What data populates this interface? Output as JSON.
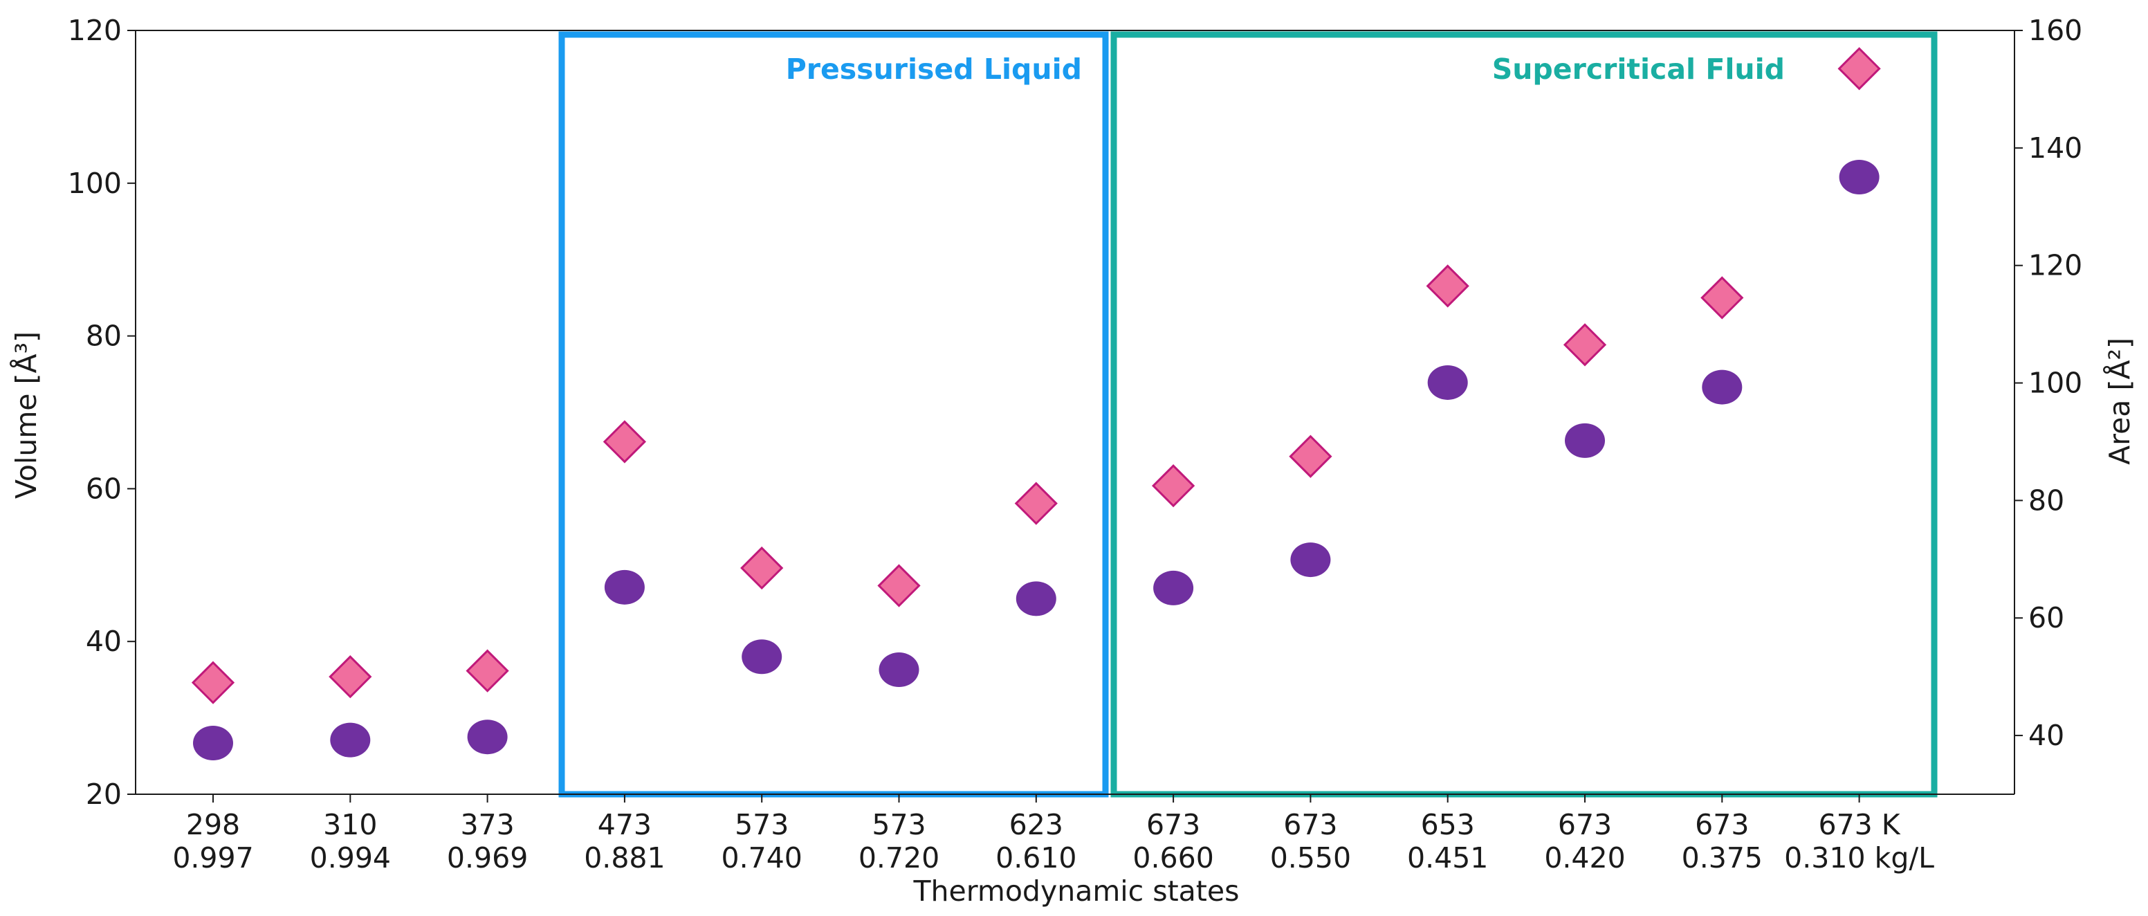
{
  "colors": {
    "volume_marker": "#7030a0",
    "area_marker_fill": "#f06e9e",
    "area_marker_edge": "#c0197a",
    "liquid_box": "#1a9bf0",
    "fluid_box": "#1aaea2",
    "axis": "#1a1a1a"
  },
  "chart_data": {
    "type": "scatter",
    "xlabel": "Thermodynamic states",
    "ylabel_left": "Volume [Å³]",
    "ylabel_right": "Area [Å²]",
    "ylim_left": [
      20,
      120
    ],
    "yticks_left": [
      20,
      40,
      60,
      80,
      100,
      120
    ],
    "ylim_right": [
      30,
      160
    ],
    "yticks_right": [
      40,
      60,
      80,
      100,
      120,
      140,
      160
    ],
    "categories": [
      {
        "temperature": "298",
        "density": "0.997"
      },
      {
        "temperature": "310",
        "density": "0.994"
      },
      {
        "temperature": "373",
        "density": "0.969"
      },
      {
        "temperature": "473",
        "density": "0.881"
      },
      {
        "temperature": "573",
        "density": "0.740"
      },
      {
        "temperature": "573",
        "density": "0.720"
      },
      {
        "temperature": "623",
        "density": "0.610"
      },
      {
        "temperature": "673",
        "density": "0.660"
      },
      {
        "temperature": "673",
        "density": "0.550"
      },
      {
        "temperature": "653",
        "density": "0.451"
      },
      {
        "temperature": "673",
        "density": "0.420"
      },
      {
        "temperature": "673",
        "density": "0.375"
      },
      {
        "temperature": "673 K",
        "density": "0.310 kg/L"
      }
    ],
    "series": [
      {
        "name": "Volume",
        "axis": "left",
        "marker": "circle",
        "values": [
          26.7,
          27.1,
          27.5,
          47.1,
          38.0,
          36.3,
          45.6,
          47.0,
          50.7,
          73.9,
          66.3,
          73.3,
          100.8
        ]
      },
      {
        "name": "Area",
        "axis": "right",
        "marker": "diamond",
        "values": [
          49.0,
          50.0,
          51.0,
          90.0,
          68.5,
          65.5,
          79.5,
          82.5,
          87.5,
          116.5,
          106.5,
          114.5,
          153.5
        ]
      }
    ],
    "regions": [
      {
        "label": "Pressurised Liquid",
        "from_index": 3,
        "to_index": 6
      },
      {
        "label": "Supercritical Fluid",
        "from_index": 7,
        "to_index": 12
      }
    ]
  }
}
